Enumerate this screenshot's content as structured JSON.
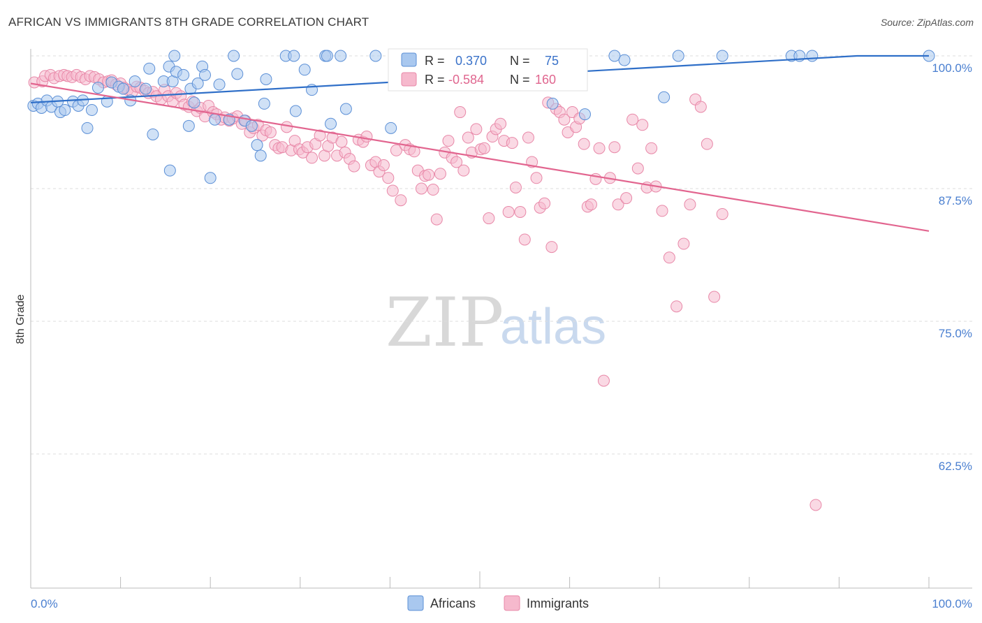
{
  "title": "AFRICAN VS IMMIGRANTS 8TH GRADE CORRELATION CHART",
  "source": "Source: ZipAtlas.com",
  "watermark": {
    "zip": "ZIP",
    "atlas": "atlas"
  },
  "colors": {
    "africans_fill": "#a9c8ef",
    "africans_stroke": "#5b8fd6",
    "africans_line": "#2f6fc8",
    "immigrants_fill": "#f6b9cd",
    "immigrants_stroke": "#e888a8",
    "immigrants_line": "#e2658f",
    "grid": "#dddddd",
    "tick_text": "#4a7fd0"
  },
  "legend_stats": {
    "r_label": "R =",
    "n_label": "N =",
    "africans": {
      "r": "0.370",
      "n": "75"
    },
    "immigrants": {
      "r": "-0.584",
      "n": "160"
    }
  },
  "chart_data": {
    "type": "scatter",
    "title": "AFRICAN VS IMMIGRANTS 8TH GRADE CORRELATION CHART",
    "xlabel": "",
    "ylabel": "8th Grade",
    "xlim": [
      0,
      100
    ],
    "ylim": [
      52,
      101
    ],
    "x_tick_labels": {
      "left": "0.0%",
      "right": "100.0%"
    },
    "y_ticks": [
      {
        "value": 100.0,
        "label": "100.0%"
      },
      {
        "value": 87.5,
        "label": "87.5%"
      },
      {
        "value": 75.0,
        "label": "75.0%"
      },
      {
        "value": 62.5,
        "label": "62.5%"
      }
    ],
    "legend": [
      "Africans",
      "Immigrants"
    ],
    "series": [
      {
        "name": "Africans",
        "r": 0.37,
        "n": 75,
        "trend": [
          [
            0,
            95.6
          ],
          [
            92,
            100.0
          ],
          [
            100,
            100.0
          ]
        ],
        "points": [
          [
            0.3,
            95.3
          ],
          [
            0.8,
            95.5
          ],
          [
            1.2,
            95.1
          ],
          [
            1.8,
            95.8
          ],
          [
            2.3,
            95.2
          ],
          [
            3.0,
            95.7
          ],
          [
            3.3,
            94.7
          ],
          [
            3.8,
            94.9
          ],
          [
            4.7,
            95.7
          ],
          [
            5.3,
            95.3
          ],
          [
            5.8,
            95.8
          ],
          [
            6.3,
            93.2
          ],
          [
            6.8,
            94.9
          ],
          [
            7.5,
            97.0
          ],
          [
            8.5,
            95.7
          ],
          [
            9.0,
            97.5
          ],
          [
            9.8,
            97.1
          ],
          [
            10.3,
            96.9
          ],
          [
            11.1,
            95.8
          ],
          [
            11.6,
            97.6
          ],
          [
            12.8,
            96.9
          ],
          [
            13.2,
            98.8
          ],
          [
            13.6,
            92.6
          ],
          [
            14.8,
            97.6
          ],
          [
            15.4,
            99.0
          ],
          [
            15.8,
            97.6
          ],
          [
            15.5,
            89.2
          ],
          [
            16.0,
            100.0
          ],
          [
            16.2,
            98.5
          ],
          [
            17.0,
            98.2
          ],
          [
            17.6,
            93.4
          ],
          [
            17.8,
            96.9
          ],
          [
            18.2,
            95.6
          ],
          [
            18.6,
            97.4
          ],
          [
            19.1,
            99.0
          ],
          [
            19.4,
            98.2
          ],
          [
            20.0,
            88.5
          ],
          [
            20.5,
            94.0
          ],
          [
            21.0,
            97.3
          ],
          [
            22.1,
            94.0
          ],
          [
            22.6,
            100.0
          ],
          [
            23.0,
            98.3
          ],
          [
            23.8,
            93.9
          ],
          [
            24.6,
            93.4
          ],
          [
            25.2,
            91.6
          ],
          [
            25.6,
            90.6
          ],
          [
            26.0,
            95.5
          ],
          [
            26.2,
            97.8
          ],
          [
            28.4,
            100.0
          ],
          [
            29.3,
            100.0
          ],
          [
            29.5,
            94.8
          ],
          [
            30.5,
            98.7
          ],
          [
            31.3,
            96.8
          ],
          [
            32.8,
            100.0
          ],
          [
            33.0,
            100.0
          ],
          [
            33.4,
            93.6
          ],
          [
            34.5,
            100.0
          ],
          [
            35.1,
            95.0
          ],
          [
            38.4,
            100.0
          ],
          [
            40.1,
            93.2
          ],
          [
            41.4,
            98.8
          ],
          [
            43.4,
            100.0
          ],
          [
            48.7,
            98.9
          ],
          [
            51.6,
            100.0
          ],
          [
            58.1,
            95.5
          ],
          [
            61.7,
            94.5
          ],
          [
            65.0,
            100.0
          ],
          [
            66.1,
            99.6
          ],
          [
            70.5,
            96.1
          ],
          [
            72.1,
            100.0
          ],
          [
            77.0,
            100.0
          ],
          [
            84.7,
            100.0
          ],
          [
            85.6,
            100.0
          ],
          [
            87.0,
            100.0
          ],
          [
            100.0,
            100.0
          ]
        ]
      },
      {
        "name": "Immigrants",
        "r": -0.584,
        "n": 160,
        "trend": [
          [
            0,
            97.4
          ],
          [
            100,
            83.5
          ]
        ],
        "points": [
          [
            0.4,
            97.5
          ],
          [
            1.3,
            97.6
          ],
          [
            1.6,
            98.1
          ],
          [
            2.2,
            98.2
          ],
          [
            2.6,
            97.9
          ],
          [
            3.2,
            98.1
          ],
          [
            3.7,
            98.2
          ],
          [
            4.1,
            98.1
          ],
          [
            4.6,
            98.0
          ],
          [
            5.1,
            98.2
          ],
          [
            5.6,
            98.0
          ],
          [
            6.1,
            97.8
          ],
          [
            6.6,
            98.1
          ],
          [
            7.1,
            98.0
          ],
          [
            7.6,
            97.8
          ],
          [
            8.1,
            97.5
          ],
          [
            8.6,
            97.6
          ],
          [
            9.0,
            97.7
          ],
          [
            9.5,
            97.3
          ],
          [
            10.0,
            97.4
          ],
          [
            10.4,
            97.0
          ],
          [
            10.8,
            96.8
          ],
          [
            11.3,
            96.6
          ],
          [
            11.8,
            97.1
          ],
          [
            12.2,
            97.0
          ],
          [
            12.7,
            96.7
          ],
          [
            13.1,
            96.5
          ],
          [
            13.6,
            96.6
          ],
          [
            14.0,
            96.2
          ],
          [
            14.5,
            95.9
          ],
          [
            14.9,
            96.8
          ],
          [
            15.3,
            96.2
          ],
          [
            15.8,
            95.7
          ],
          [
            16.2,
            96.5
          ],
          [
            16.7,
            96.2
          ],
          [
            17.1,
            95.4
          ],
          [
            17.6,
            95.2
          ],
          [
            18.0,
            95.7
          ],
          [
            18.5,
            94.8
          ],
          [
            18.9,
            95.1
          ],
          [
            19.4,
            94.3
          ],
          [
            19.8,
            95.3
          ],
          [
            20.3,
            94.7
          ],
          [
            20.7,
            94.5
          ],
          [
            21.2,
            94.0
          ],
          [
            21.6,
            94.2
          ],
          [
            22.1,
            93.9
          ],
          [
            22.5,
            94.1
          ],
          [
            23.0,
            94.3
          ],
          [
            23.5,
            93.6
          ],
          [
            23.9,
            93.9
          ],
          [
            24.4,
            92.8
          ],
          [
            24.8,
            93.2
          ],
          [
            25.3,
            93.5
          ],
          [
            25.8,
            92.5
          ],
          [
            26.2,
            93.0
          ],
          [
            26.7,
            92.8
          ],
          [
            27.2,
            91.6
          ],
          [
            27.6,
            91.3
          ],
          [
            28.0,
            91.4
          ],
          [
            28.5,
            93.3
          ],
          [
            29.0,
            91.1
          ],
          [
            29.4,
            92.0
          ],
          [
            29.9,
            91.2
          ],
          [
            30.3,
            90.9
          ],
          [
            30.8,
            91.4
          ],
          [
            31.3,
            90.4
          ],
          [
            31.7,
            91.7
          ],
          [
            32.2,
            92.5
          ],
          [
            32.7,
            90.6
          ],
          [
            33.1,
            91.5
          ],
          [
            33.6,
            92.3
          ],
          [
            34.1,
            90.6
          ],
          [
            34.6,
            91.9
          ],
          [
            35.0,
            90.9
          ],
          [
            35.5,
            90.3
          ],
          [
            36.0,
            89.6
          ],
          [
            36.5,
            92.1
          ],
          [
            37.0,
            91.9
          ],
          [
            37.4,
            92.4
          ],
          [
            37.9,
            89.7
          ],
          [
            38.4,
            90.0
          ],
          [
            38.8,
            89.1
          ],
          [
            39.3,
            89.7
          ],
          [
            39.8,
            88.5
          ],
          [
            40.3,
            87.3
          ],
          [
            40.7,
            91.1
          ],
          [
            41.2,
            86.4
          ],
          [
            41.7,
            91.6
          ],
          [
            42.2,
            91.2
          ],
          [
            42.7,
            91.0
          ],
          [
            43.1,
            89.2
          ],
          [
            43.5,
            87.5
          ],
          [
            43.9,
            88.7
          ],
          [
            44.3,
            88.8
          ],
          [
            44.8,
            87.4
          ],
          [
            45.2,
            84.6
          ],
          [
            45.6,
            88.9
          ],
          [
            46.1,
            90.9
          ],
          [
            46.5,
            92.0
          ],
          [
            46.9,
            90.4
          ],
          [
            47.4,
            90.0
          ],
          [
            47.8,
            94.7
          ],
          [
            48.2,
            89.2
          ],
          [
            48.7,
            92.3
          ],
          [
            49.1,
            90.9
          ],
          [
            49.6,
            93.1
          ],
          [
            50.1,
            91.2
          ],
          [
            50.5,
            91.3
          ],
          [
            51.0,
            84.7
          ],
          [
            51.4,
            92.4
          ],
          [
            51.8,
            93.1
          ],
          [
            52.3,
            93.6
          ],
          [
            52.7,
            92.0
          ],
          [
            53.2,
            85.3
          ],
          [
            53.6,
            91.8
          ],
          [
            54.0,
            87.6
          ],
          [
            54.5,
            85.3
          ],
          [
            55.0,
            82.7
          ],
          [
            55.4,
            92.3
          ],
          [
            55.8,
            90.0
          ],
          [
            56.3,
            88.5
          ],
          [
            56.7,
            85.7
          ],
          [
            57.2,
            86.1
          ],
          [
            57.6,
            95.6
          ],
          [
            58.0,
            82.0
          ],
          [
            58.5,
            95.0
          ],
          [
            58.9,
            94.7
          ],
          [
            59.4,
            94.0
          ],
          [
            59.8,
            92.8
          ],
          [
            60.3,
            94.7
          ],
          [
            60.7,
            93.3
          ],
          [
            61.1,
            94.1
          ],
          [
            61.6,
            91.7
          ],
          [
            62.0,
            85.8
          ],
          [
            62.4,
            86.0
          ],
          [
            62.9,
            88.4
          ],
          [
            63.3,
            91.3
          ],
          [
            63.8,
            69.4
          ],
          [
            64.5,
            88.5
          ],
          [
            65.0,
            91.4
          ],
          [
            65.4,
            86.0
          ],
          [
            66.3,
            86.6
          ],
          [
            67.0,
            94.0
          ],
          [
            67.6,
            89.4
          ],
          [
            68.1,
            93.5
          ],
          [
            68.6,
            87.6
          ],
          [
            69.1,
            91.3
          ],
          [
            69.6,
            87.7
          ],
          [
            70.3,
            85.4
          ],
          [
            71.1,
            81.0
          ],
          [
            71.9,
            76.4
          ],
          [
            72.7,
            82.3
          ],
          [
            73.4,
            86.0
          ],
          [
            74.0,
            95.9
          ],
          [
            74.6,
            95.2
          ],
          [
            75.3,
            91.7
          ],
          [
            76.1,
            77.3
          ],
          [
            77.0,
            85.1
          ],
          [
            87.4,
            57.7
          ]
        ]
      }
    ]
  }
}
